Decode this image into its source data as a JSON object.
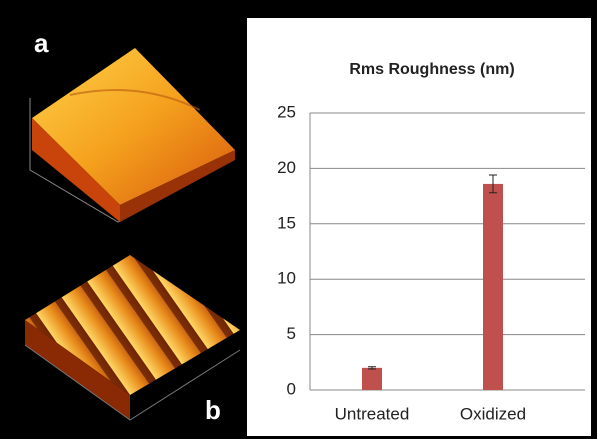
{
  "panels": [
    {
      "label": "a"
    },
    {
      "label": "b"
    }
  ],
  "chart_data": {
    "type": "bar",
    "title": "Rms  Roughness (nm)",
    "categories": [
      "Untreated",
      "Oxidized"
    ],
    "values": [
      2.0,
      18.6
    ],
    "errors": [
      0.1,
      0.8
    ],
    "color": "#c0504d",
    "ylim": [
      0,
      25
    ],
    "yticks": [
      0,
      5,
      10,
      15,
      20,
      25
    ],
    "grid": true
  }
}
